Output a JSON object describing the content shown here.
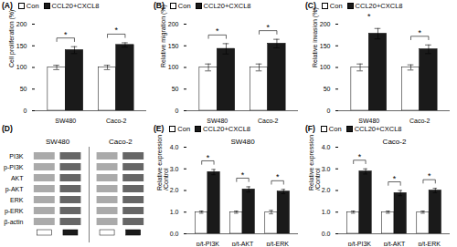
{
  "chart_data": [
    {
      "type": "bar",
      "title": "(A)",
      "ylabel": "Cell proliferation (%)",
      "categories": [
        "SW480",
        "Caco-2"
      ],
      "series": [
        {
          "name": "Con",
          "color": "white",
          "values": [
            100,
            100
          ],
          "error": [
            5,
            5
          ]
        },
        {
          "name": "CCL20+CXCL8",
          "color": "#1a1a1a",
          "values": [
            140,
            152
          ],
          "error": [
            8,
            5
          ]
        }
      ],
      "ylim": [
        0,
        200
      ],
      "yticks": [
        0,
        50,
        100,
        150,
        200
      ],
      "grid": false,
      "legend": "upper left",
      "annotations": [
        {
          "category": "SW480",
          "text": "*"
        },
        {
          "category": "Caco-2",
          "text": "*"
        }
      ]
    },
    {
      "type": "bar",
      "title": "(B)",
      "ylabel": "Relative migration (%)",
      "categories": [
        "SW480",
        "Caco-2"
      ],
      "series": [
        {
          "name": "Con",
          "color": "white",
          "values": [
            100,
            100
          ],
          "error": [
            8,
            8
          ]
        },
        {
          "name": "CCL20+CXCL8",
          "color": "#1a1a1a",
          "values": [
            143,
            155
          ],
          "error": [
            12,
            10
          ]
        }
      ],
      "ylim": [
        0,
        200
      ],
      "yticks": [
        0,
        50,
        100,
        150,
        200
      ],
      "grid": false,
      "legend": "upper left",
      "annotations": [
        {
          "category": "SW480",
          "text": "*"
        },
        {
          "category": "Caco-2",
          "text": "*"
        }
      ]
    },
    {
      "type": "bar",
      "title": "(C)",
      "ylabel": "Relative invasion (%)",
      "categories": [
        "SW480",
        "Caco-2"
      ],
      "series": [
        {
          "name": "Con",
          "color": "white",
          "values": [
            100,
            100
          ],
          "error": [
            8,
            6
          ]
        },
        {
          "name": "CCL20+CXCL8",
          "color": "#1a1a1a",
          "values": [
            178,
            142
          ],
          "error": [
            12,
            10
          ]
        }
      ],
      "ylim": [
        0,
        200
      ],
      "yticks": [
        0,
        50,
        100,
        150,
        200
      ],
      "grid": false,
      "legend": "upper left",
      "annotations": [
        {
          "category": "SW480",
          "text": "*"
        },
        {
          "category": "Caco-2",
          "text": "*"
        }
      ]
    },
    {
      "type": "blot",
      "title": "(D)",
      "annotations": [
        "SW480",
        "Caco-2"
      ],
      "categories": [
        "PI3K",
        "p-PI3K",
        "AKT",
        "p-AKT",
        "ERK",
        "p-ERK",
        "β-actin"
      ],
      "colors": [
        "#aaaaaa",
        "#666666"
      ]
    },
    {
      "type": "bar",
      "title": "SW480",
      "ylabel": "Relative expression\n/Control",
      "categories": [
        "p/t-PI3K",
        "p/t-AKT",
        "p/t-ERK"
      ],
      "series": [
        {
          "name": "Con",
          "color": "white",
          "values": [
            1.0,
            1.0,
            1.0
          ],
          "error": [
            0.05,
            0.05,
            0.08
          ]
        },
        {
          "name": "CCL20+CXCL8",
          "color": "#1a1a1a",
          "values": [
            2.85,
            2.05,
            1.95
          ],
          "error": [
            0.12,
            0.12,
            0.1
          ]
        }
      ],
      "ylim": [
        0,
        4
      ],
      "yticks": [
        0,
        1,
        2,
        3,
        4
      ],
      "grid": false,
      "legend": "upper left",
      "annotations": [
        {
          "text": "(E)"
        },
        {
          "category": "p/t-PI3K",
          "text": "*"
        },
        {
          "category": "p/t-AKT",
          "text": "*"
        },
        {
          "category": "p/t-ERK",
          "text": "*"
        }
      ]
    },
    {
      "type": "bar",
      "title": "Caco-2",
      "ylabel": "Relative expression\n/Control",
      "categories": [
        "p/t-PI3K",
        "p/t-AKT",
        "p/t-ERK"
      ],
      "series": [
        {
          "name": "Con",
          "color": "white",
          "values": [
            1.0,
            1.0,
            1.0
          ],
          "error": [
            0.05,
            0.05,
            0.05
          ]
        },
        {
          "name": "CCL20+CXCL8",
          "color": "#1a1a1a",
          "values": [
            2.88,
            1.88,
            2.0
          ],
          "error": [
            0.12,
            0.12,
            0.1
          ]
        }
      ],
      "ylim": [
        0,
        4
      ],
      "yticks": [
        0,
        1,
        2,
        3,
        4
      ],
      "grid": false,
      "legend": "upper left",
      "annotations": [
        {
          "text": "(F)"
        },
        {
          "category": "p/t-PI3K",
          "text": "*"
        },
        {
          "category": "p/t-AKT",
          "text": "*"
        },
        {
          "category": "p/t-ERK",
          "text": "*"
        }
      ]
    }
  ]
}
